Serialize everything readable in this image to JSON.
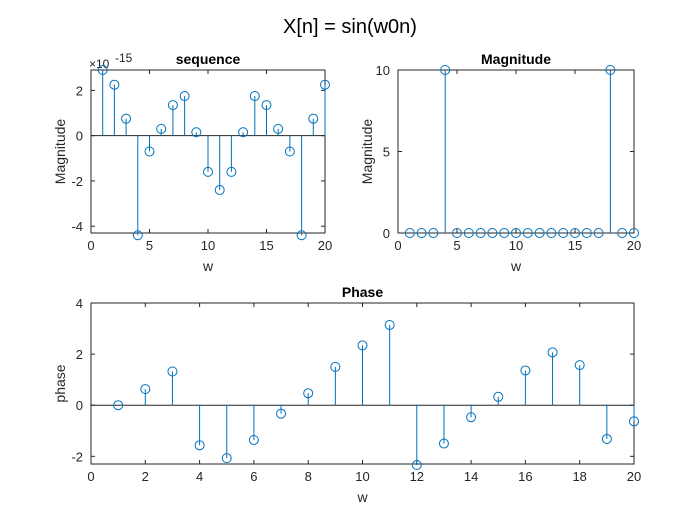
{
  "figure_title": "X[n] = sin(w0n)",
  "colors": {
    "series": "#0072BD",
    "axis": "#262626",
    "baseline": "#262626"
  },
  "chart_data": [
    {
      "type": "stem",
      "title": "sequence",
      "xlabel": "w",
      "ylabel": "Magnitude",
      "y_exponent_label": "×10",
      "y_exponent": "-15",
      "xlim": [
        0,
        20
      ],
      "ylim": [
        -4.3,
        2.9
      ],
      "xticks": [
        0,
        5,
        10,
        15,
        20
      ],
      "yticks": [
        -4,
        -2,
        0,
        2
      ],
      "grid": false,
      "x": [
        1,
        2,
        3,
        4,
        5,
        6,
        7,
        8,
        9,
        10,
        11,
        12,
        13,
        14,
        15,
        16,
        17,
        18,
        19,
        20
      ],
      "y": [
        2.9,
        2.25,
        0.75,
        -4.4,
        -0.7,
        0.3,
        1.35,
        1.75,
        0.15,
        -1.6,
        -2.4,
        -1.6,
        0.15,
        1.75,
        1.35,
        0.3,
        -0.7,
        -4.4,
        0.75,
        2.25
      ]
    },
    {
      "type": "stem",
      "title": "Magnitude",
      "xlabel": "w",
      "ylabel": "Magnitude",
      "xlim": [
        0,
        20
      ],
      "ylim": [
        0,
        10
      ],
      "xticks": [
        0,
        5,
        10,
        15,
        20
      ],
      "yticks": [
        0,
        5,
        10
      ],
      "grid": false,
      "x": [
        1,
        2,
        3,
        4,
        5,
        6,
        7,
        8,
        9,
        10,
        11,
        12,
        13,
        14,
        15,
        16,
        17,
        18,
        19,
        20
      ],
      "y": [
        0,
        0,
        0,
        10,
        0,
        0,
        0,
        0,
        0,
        0,
        0,
        0,
        0,
        0,
        0,
        0,
        0,
        10,
        0,
        0
      ]
    },
    {
      "type": "stem",
      "title": "Phase",
      "xlabel": "w",
      "ylabel": "phase",
      "xlim": [
        0,
        20
      ],
      "ylim": [
        -2.3,
        4
      ],
      "xticks": [
        0,
        2,
        4,
        6,
        8,
        10,
        12,
        14,
        16,
        18,
        20
      ],
      "yticks": [
        -2,
        0,
        2,
        4
      ],
      "grid": false,
      "x": [
        1,
        2,
        3,
        4,
        5,
        6,
        7,
        8,
        9,
        10,
        11,
        12,
        13,
        14,
        15,
        16,
        17,
        18,
        19,
        20
      ],
      "y": [
        0,
        0.63,
        1.32,
        -1.57,
        -2.07,
        -1.36,
        -0.33,
        0.47,
        1.5,
        2.34,
        3.14,
        -2.34,
        -1.5,
        -0.47,
        0.33,
        1.36,
        2.07,
        1.57,
        -1.32,
        -0.63
      ]
    }
  ]
}
